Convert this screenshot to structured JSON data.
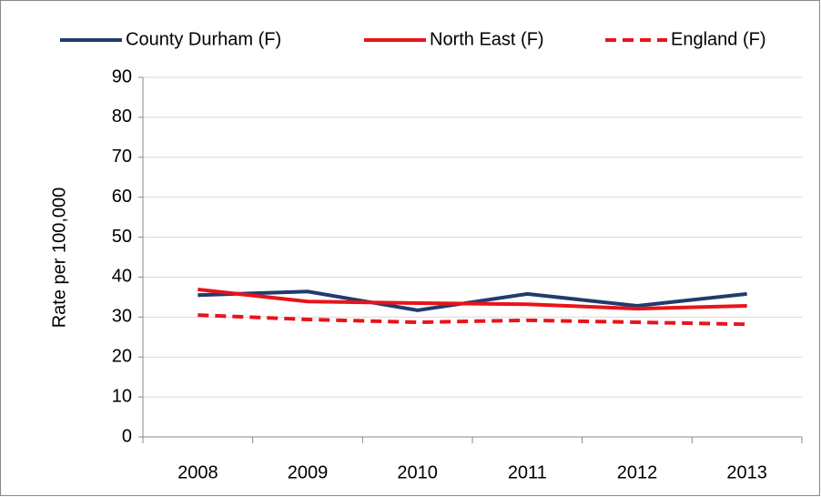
{
  "chart_data": {
    "type": "line",
    "y_label": "Rate per 100,000",
    "categories": [
      "2008",
      "2009",
      "2010",
      "2011",
      "2012",
      "2013"
    ],
    "series": [
      {
        "name": "County Durham (F)",
        "color": "#1f3c6e",
        "dash": false,
        "values": [
          35.5,
          36.4,
          31.7,
          35.8,
          32.8,
          35.8
        ]
      },
      {
        "name": "North East (F)",
        "color": "#e8141a",
        "dash": false,
        "values": [
          36.9,
          33.9,
          33.5,
          33.2,
          32.1,
          32.8
        ]
      },
      {
        "name": "England (F)",
        "color": "#e8141a",
        "dash": true,
        "values": [
          30.5,
          29.4,
          28.7,
          29.2,
          28.7,
          28.2
        ]
      }
    ],
    "ylim": [
      0,
      90
    ],
    "yticks": [
      0,
      10,
      20,
      30,
      40,
      50,
      60,
      70,
      80,
      90
    ],
    "grid": true,
    "legend": "top"
  }
}
